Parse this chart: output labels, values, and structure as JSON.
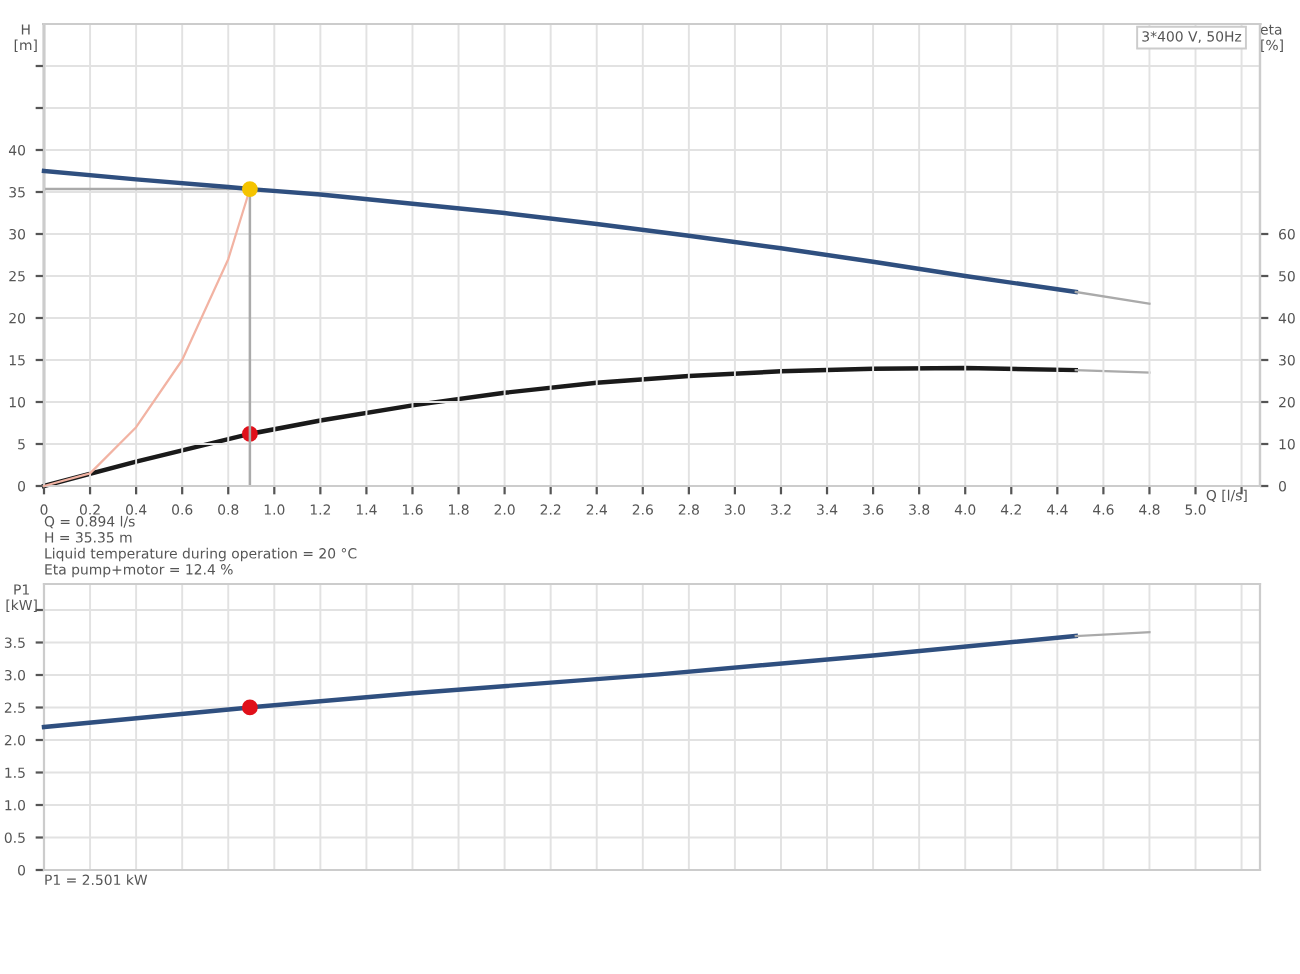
{
  "chart_data": [
    {
      "type": "line",
      "xlabel": "Q [l/s]",
      "ylabel": "H\n[m]",
      "y2label": "eta\n[%]",
      "xlim": [
        0,
        5.28
      ],
      "xticks": [
        0,
        0.2,
        0.4,
        0.6,
        0.8,
        {
          "value": 1,
          "label": "1.0"
        },
        1.2,
        1.4,
        1.6,
        1.8,
        {
          "value": 2,
          "label": "2.0"
        },
        2.2,
        2.4,
        2.6,
        2.8,
        {
          "value": 3,
          "label": "3.0"
        },
        3.2,
        3.4,
        3.6,
        3.8,
        {
          "value": 4,
          "label": "4.0"
        },
        4.2,
        4.4,
        4.6,
        4.8,
        {
          "value": 5,
          "label": "5.0"
        },
        {
          "value": 5.2,
          "label": null
        }
      ],
      "ylim": [
        0,
        55
      ],
      "yticks": [
        0,
        5,
        10,
        15,
        20,
        25,
        30,
        35,
        40,
        {
          "value": 45,
          "label": null
        },
        {
          "value": 50,
          "label": null
        }
      ],
      "y2lim": [
        0,
        110
      ],
      "y2ticks": [
        0,
        10,
        20,
        30,
        40,
        50,
        60
      ],
      "grid": true,
      "legend": false,
      "series": [
        {
          "color": "#f2b3a3",
          "x": [
            0,
            0.2,
            0.4,
            0.6,
            0.8,
            0.894
          ],
          "values": [
            0,
            1.5,
            7,
            15,
            27,
            35.35
          ]
        },
        {
          "color": "#2f4f7f",
          "x": [
            0,
            0.4,
            0.8,
            0.894,
            1.2,
            1.6,
            2.0,
            2.4,
            2.8,
            3.2,
            3.6,
            4.0,
            4.48
          ],
          "values": [
            37.5,
            36.5,
            35.6,
            35.35,
            34.7,
            33.6,
            32.5,
            31.2,
            29.8,
            28.3,
            26.7,
            25.0,
            23.1
          ]
        },
        {
          "color": "#aaaaaa",
          "x": [
            4.48,
            4.8
          ],
          "values": [
            23.1,
            21.7
          ]
        },
        {
          "axis": "y2",
          "color": "#1a1a1a",
          "x": [
            0,
            0.4,
            0.894,
            1.2,
            1.6,
            2.0,
            2.4,
            2.8,
            3.2,
            3.6,
            4.0,
            4.48
          ],
          "values": [
            0,
            5.8,
            12.4,
            15.6,
            19.2,
            22.2,
            24.6,
            26.2,
            27.3,
            27.9,
            28.1,
            27.6
          ]
        },
        {
          "axis": "y2",
          "color": "#aaaaaa",
          "x": [
            4.48,
            4.8
          ],
          "values": [
            27.6,
            27.0
          ]
        },
        {
          "type": "scatter",
          "marker": "circle",
          "color": "#f5c400",
          "x": [
            0.894
          ],
          "values": [
            35.35
          ]
        },
        {
          "type": "scatter",
          "axis": "y2",
          "marker": "circle",
          "color": "#e0101a",
          "x": [
            0.894
          ],
          "values": [
            12.4
          ]
        }
      ],
      "ref_lines": [
        {
          "axis": "y",
          "value": 35.35,
          "color": "#aaaaaa"
        },
        {
          "axis": "x",
          "value": 0.894,
          "color": "#aaaaaa"
        }
      ],
      "annotations": [
        "3*400 V, 50Hz",
        "Q = 0.894 l/s",
        "H = 35.35 m",
        "Liquid temperature during operation = 20 °C",
        "Eta pump+motor = 12.4 %"
      ]
    },
    {
      "type": "line",
      "ylabel": "P1\n[kW]",
      "tick_labels": "y",
      "xlim": [
        0,
        5.28
      ],
      "xticks": [
        0,
        0.2,
        0.4,
        0.6,
        0.8,
        1,
        1.2,
        1.4,
        1.6,
        1.8,
        2,
        2.2,
        2.4,
        2.6,
        2.8,
        3,
        3.2,
        3.4,
        3.6,
        3.8,
        4,
        4.2,
        4.4,
        4.6,
        4.8,
        5,
        5.2
      ],
      "ylim": [
        0,
        4.4
      ],
      "yticks": [
        0,
        0.5,
        {
          "value": 1,
          "label": "1.0"
        },
        1.5,
        {
          "value": 2,
          "label": "2.0"
        },
        2.5,
        {
          "value": 3,
          "label": "3.0"
        },
        3.5,
        {
          "value": 4,
          "label": null
        }
      ],
      "grid": true,
      "legend": false,
      "series": [
        {
          "color": "#2f4f7f",
          "x": [
            0,
            0.894,
            1.6,
            2.67,
            3.6,
            4.48
          ],
          "values": [
            2.2,
            2.501,
            2.72,
            3.01,
            3.3,
            3.6
          ]
        },
        {
          "color": "#aaaaaa",
          "x": [
            4.48,
            4.8
          ],
          "values": [
            3.6,
            3.66
          ]
        },
        {
          "type": "scatter",
          "marker": "circle",
          "color": "#e0101a",
          "x": [
            0.894
          ],
          "values": [
            2.501
          ]
        }
      ],
      "annotations": [
        "P1 = 2.501 kW"
      ]
    }
  ]
}
